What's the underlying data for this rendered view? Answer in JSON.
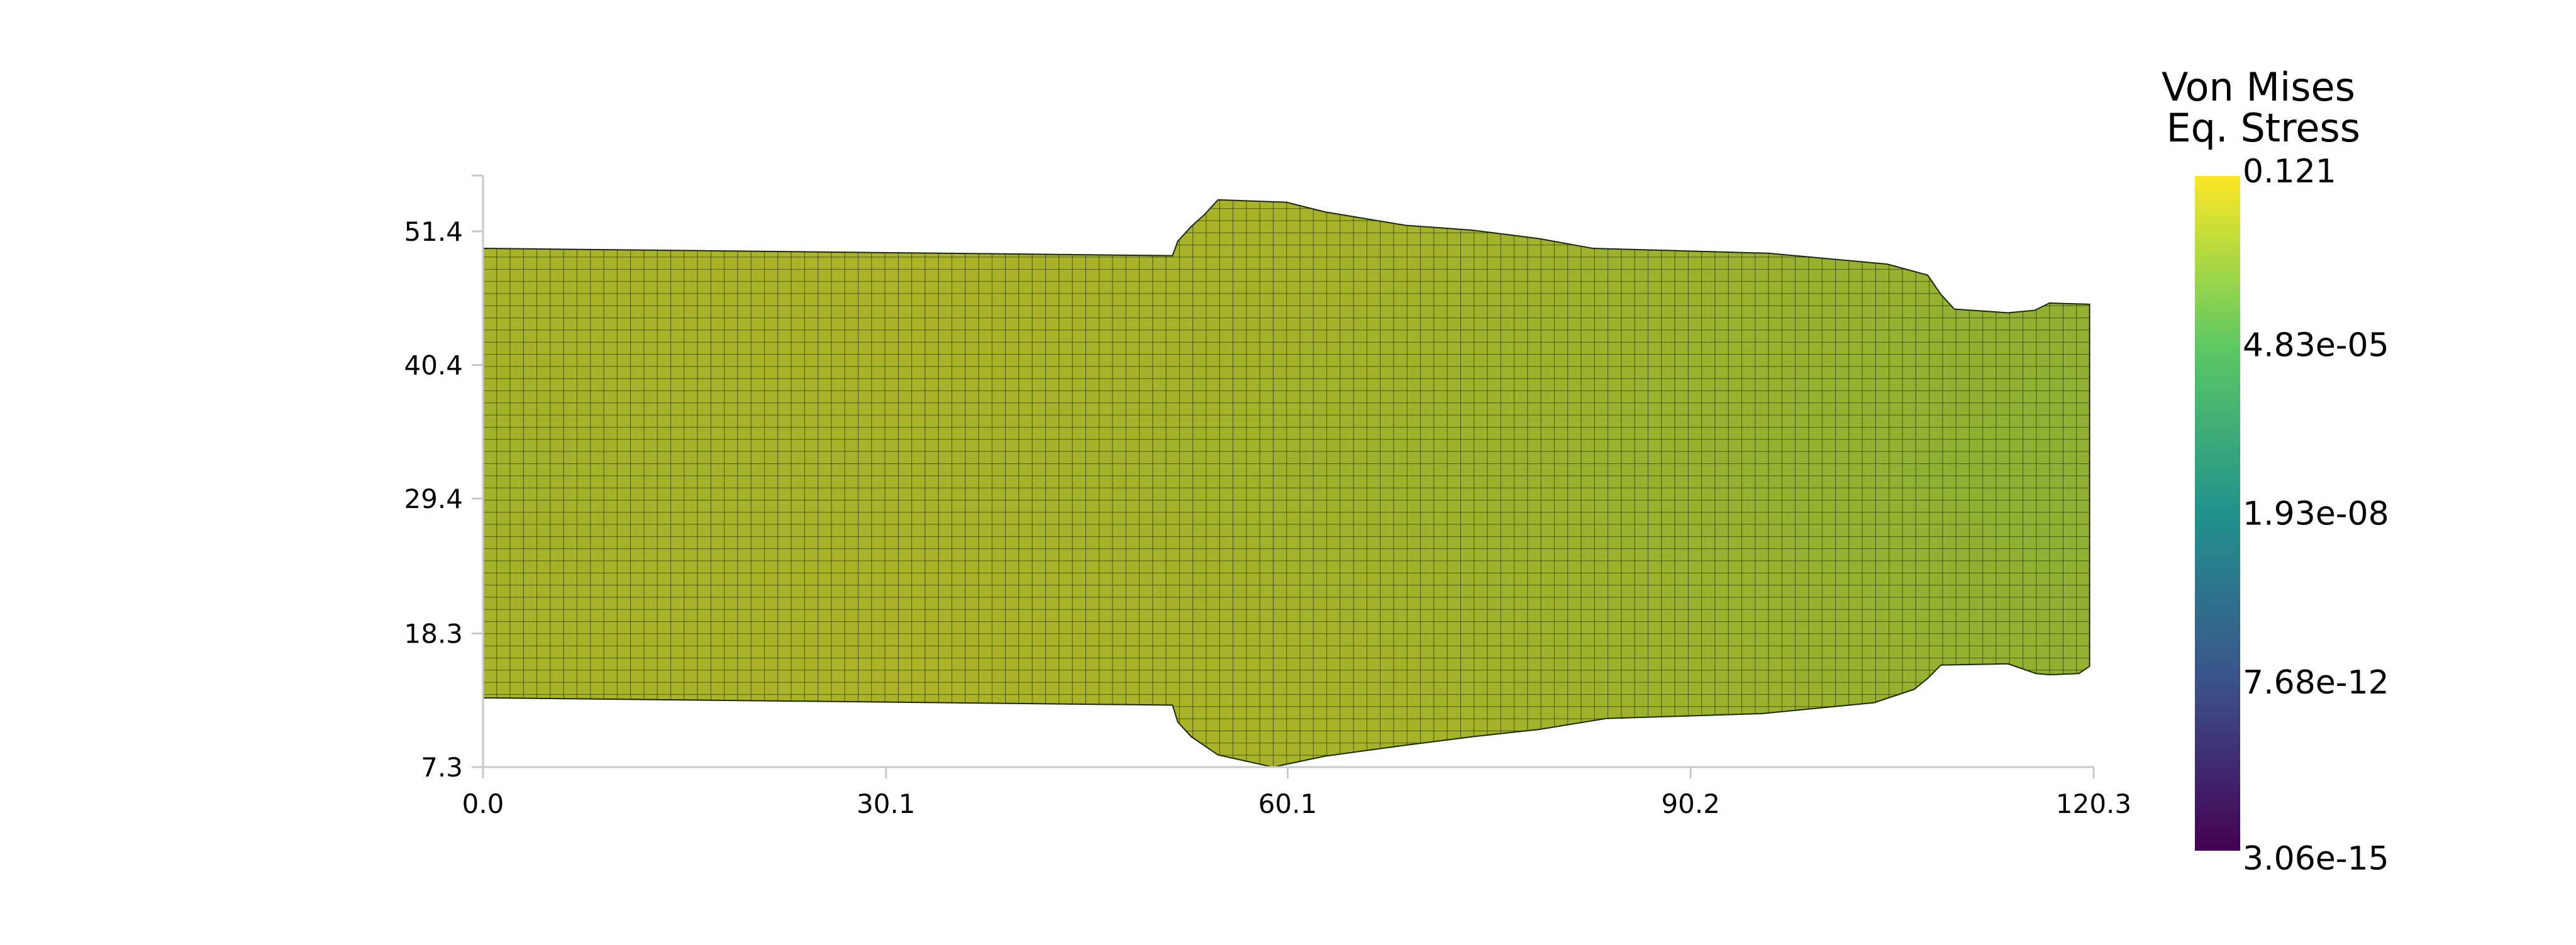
{
  "chart_data": {
    "type": "heatmap",
    "description_free": true,
    "xlim": [
      0.0,
      120.3
    ],
    "ylim": [
      7.3,
      56.0
    ],
    "x_ticks": [
      "0.0",
      "30.1",
      "60.1",
      "90.2",
      "120.3"
    ],
    "x_tick_values": [
      0.0,
      30.1,
      60.1,
      90.2,
      120.3
    ],
    "y_ticks": [
      "7.3",
      "18.3",
      "29.4",
      "40.4",
      "51.4"
    ],
    "y_tick_values": [
      7.3,
      18.3,
      29.4,
      40.4,
      51.4
    ],
    "mesh_cell_size": 1.0,
    "outline": {
      "top": [
        [
          0.0,
          50.0
        ],
        [
          51.5,
          49.4
        ],
        [
          51.9,
          50.6
        ],
        [
          52.9,
          51.8
        ],
        [
          53.9,
          52.8
        ],
        [
          54.9,
          54.0
        ],
        [
          60.0,
          53.8
        ],
        [
          62.9,
          53.0
        ],
        [
          68.9,
          51.9
        ],
        [
          73.9,
          51.5
        ],
        [
          78.9,
          50.8
        ],
        [
          82.9,
          50.0
        ],
        [
          96.0,
          49.6
        ],
        [
          104.9,
          48.7
        ],
        [
          107.9,
          47.8
        ],
        [
          108.9,
          46.2
        ],
        [
          109.9,
          45.0
        ],
        [
          113.9,
          44.7
        ],
        [
          115.9,
          44.9
        ],
        [
          117.0,
          45.5
        ],
        [
          120.0,
          45.4
        ]
      ],
      "bottom": [
        [
          0.0,
          13.0
        ],
        [
          51.5,
          12.4
        ],
        [
          51.9,
          11.0
        ],
        [
          52.9,
          9.8
        ],
        [
          54.9,
          8.3
        ],
        [
          59.0,
          7.3
        ],
        [
          62.9,
          8.2
        ],
        [
          68.9,
          9.1
        ],
        [
          73.9,
          9.8
        ],
        [
          78.9,
          10.4
        ],
        [
          83.9,
          11.3
        ],
        [
          95.5,
          11.7
        ],
        [
          103.9,
          12.6
        ],
        [
          106.9,
          13.7
        ],
        [
          107.9,
          14.6
        ],
        [
          108.9,
          15.7
        ],
        [
          113.9,
          15.8
        ],
        [
          116.0,
          15.0
        ],
        [
          117.0,
          14.9
        ],
        [
          119.2,
          15.0
        ],
        [
          120.0,
          15.6
        ]
      ]
    },
    "colorbar": {
      "title_lines": [
        "Von Mises",
        "Eq. Stress"
      ],
      "labels": [
        "0.121",
        "4.83e-05",
        "1.93e-08",
        "7.68e-12",
        "3.06e-15"
      ],
      "values": [
        0.121,
        4.83e-05,
        1.93e-08,
        7.68e-12,
        3.06e-15
      ],
      "scale": "log",
      "colormap_stops": [
        "#440154",
        "#3b528b",
        "#21918c",
        "#5ec962",
        "#fde725"
      ]
    },
    "field_colors": {
      "dominant": "#a6b327",
      "warm": "#b3b424",
      "cool": "#8fb034",
      "edge_cool": "#62a940",
      "mesh_lines": "#1a2a08"
    }
  }
}
